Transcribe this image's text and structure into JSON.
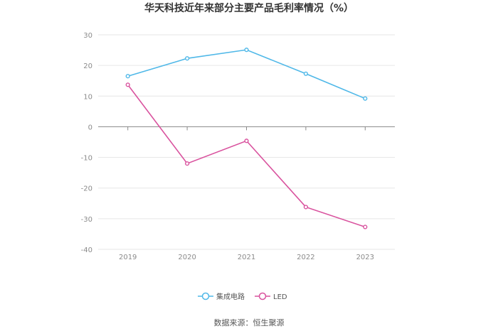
{
  "chart_data": {
    "type": "line",
    "title": "华天科技近年来部分主要产品毛利率情况（%）",
    "xlabel": "",
    "ylabel": "",
    "categories": [
      "2019",
      "2020",
      "2021",
      "2022",
      "2023"
    ],
    "ylim": [
      -40,
      30
    ],
    "yticks": [
      30,
      20,
      10,
      0,
      -10,
      -20,
      -30,
      -40
    ],
    "grid": true,
    "legend_position": "bottom",
    "series": [
      {
        "name": "集成电路",
        "color": "#4fb8e8",
        "values": [
          16.5,
          22.3,
          25.1,
          17.3,
          9.2
        ]
      },
      {
        "name": "LED",
        "color": "#d9529e",
        "values": [
          13.7,
          -12.0,
          -4.6,
          -26.2,
          -32.7
        ]
      }
    ]
  },
  "source": "数据来源：恒生聚源"
}
